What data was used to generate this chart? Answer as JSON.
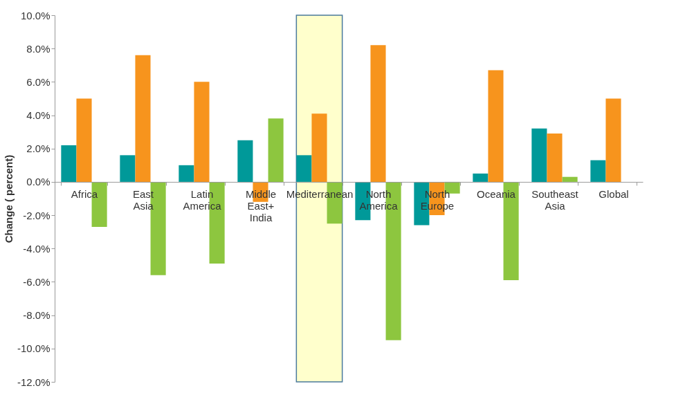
{
  "chart_data": {
    "type": "bar",
    "ylabel": "Change ( percent)",
    "categories": [
      "Africa",
      "East Asia",
      "Latin America",
      "Middle East+ India",
      "Mediterranean",
      "North America",
      "North Europe",
      "Oceania",
      "Southeast Asia",
      "Global"
    ],
    "series": [
      {
        "color": "#009999",
        "values": [
          2.2,
          1.6,
          1.0,
          2.5,
          1.6,
          -2.3,
          -2.6,
          0.5,
          3.2,
          1.3
        ]
      },
      {
        "color": "#f7941d",
        "values": [
          5.0,
          7.6,
          6.0,
          -1.2,
          4.1,
          8.2,
          -2.0,
          6.7,
          2.9,
          5.0
        ]
      },
      {
        "color": "#8dc63f",
        "values": [
          -2.7,
          -5.6,
          -4.9,
          3.8,
          -2.5,
          -9.5,
          -0.7,
          -5.9,
          0.3,
          null
        ]
      }
    ],
    "ylim": [
      -12,
      10
    ],
    "yticks": [
      {
        "value": -12,
        "label": "-12.0%"
      },
      {
        "value": -10,
        "label": "-10.0%"
      },
      {
        "value": -8,
        "label": "-8.0%"
      },
      {
        "value": -6,
        "label": "-6.0%"
      },
      {
        "value": -4,
        "label": "-4.0%"
      },
      {
        "value": -2,
        "label": "-2.0%"
      },
      {
        "value": 0,
        "label": "0.0%"
      },
      {
        "value": 2,
        "label": "2.0%"
      },
      {
        "value": 4,
        "label": "4.0%"
      },
      {
        "value": 6,
        "label": "6.0%"
      },
      {
        "value": 8,
        "label": "8.0%"
      },
      {
        "value": 10,
        "label": "10.0%"
      }
    ],
    "bands": [
      {
        "axis": "x",
        "from": "Mediterranean",
        "to": "Mediterranean",
        "color": "#ffffcc"
      }
    ],
    "grid": false,
    "legend": false
  }
}
